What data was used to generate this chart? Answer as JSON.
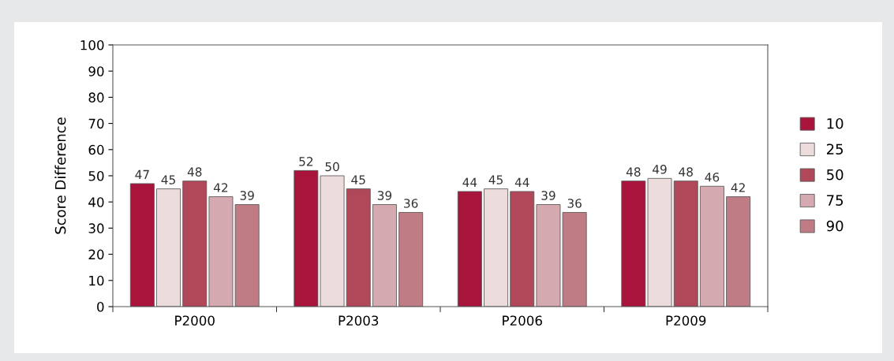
{
  "chart_data": {
    "type": "bar",
    "ylabel": "Score Difference",
    "categories": [
      "P2000",
      "P2003",
      "P2006",
      "P2009"
    ],
    "series": [
      {
        "name": "10",
        "color": "#a8143c",
        "values": [
          47,
          52,
          44,
          48
        ]
      },
      {
        "name": "25",
        "color": "#ecdcdc",
        "values": [
          45,
          50,
          45,
          49
        ]
      },
      {
        "name": "50",
        "color": "#b0485a",
        "values": [
          48,
          45,
          44,
          48
        ]
      },
      {
        "name": "75",
        "color": "#d4aab0",
        "values": [
          42,
          39,
          39,
          46
        ]
      },
      {
        "name": "90",
        "color": "#c07c84",
        "values": [
          39,
          36,
          36,
          42
        ]
      }
    ],
    "ylim": [
      0,
      100
    ],
    "yticks": [
      0,
      10,
      20,
      30,
      40,
      50,
      60,
      70,
      80,
      90,
      100
    ],
    "data_labels": true,
    "legend": "right",
    "grid": false
  }
}
